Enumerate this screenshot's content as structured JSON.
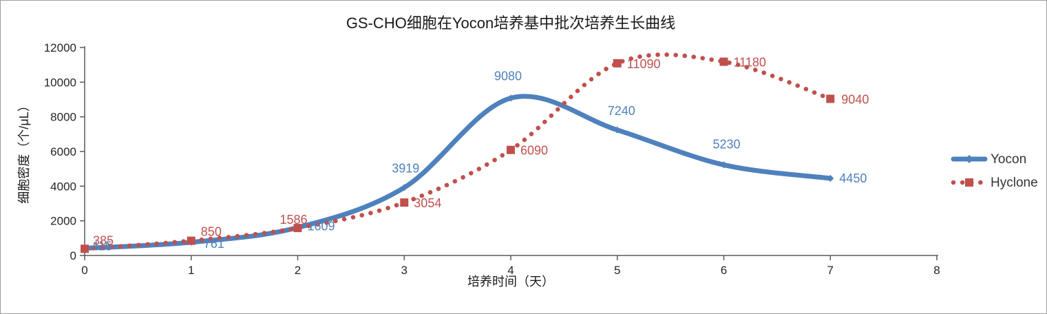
{
  "chart_data": {
    "type": "line",
    "title": "GS-CHO细胞在Yocon培养基中批次培养生长曲线",
    "xlabel": "培养时间（天）",
    "ylabel": "细胞密度（个/μL）",
    "x": [
      0,
      1,
      2,
      3,
      4,
      5,
      6,
      7
    ],
    "xlim": [
      0,
      8
    ],
    "ylim": [
      0,
      12000
    ],
    "x_ticks": [
      0,
      1,
      2,
      3,
      4,
      5,
      6,
      7,
      8
    ],
    "y_ticks": [
      0,
      2000,
      4000,
      6000,
      8000,
      10000,
      12000
    ],
    "grid": false,
    "legend_position": "right",
    "smooth_lines": true,
    "axis_color": "#595959",
    "series": [
      {
        "name": "Yocon",
        "color": "#4F81BD",
        "line_style": "solid",
        "marker": "diamond",
        "values": [
          415,
          761,
          1609,
          3919,
          9080,
          7240,
          5230,
          4450
        ]
      },
      {
        "name": "Hyclone",
        "color": "#C0504D",
        "line_style": "dotted",
        "marker": "square",
        "values": [
          385,
          850,
          1586,
          3054,
          6090,
          11090,
          11180,
          9040
        ]
      }
    ]
  }
}
